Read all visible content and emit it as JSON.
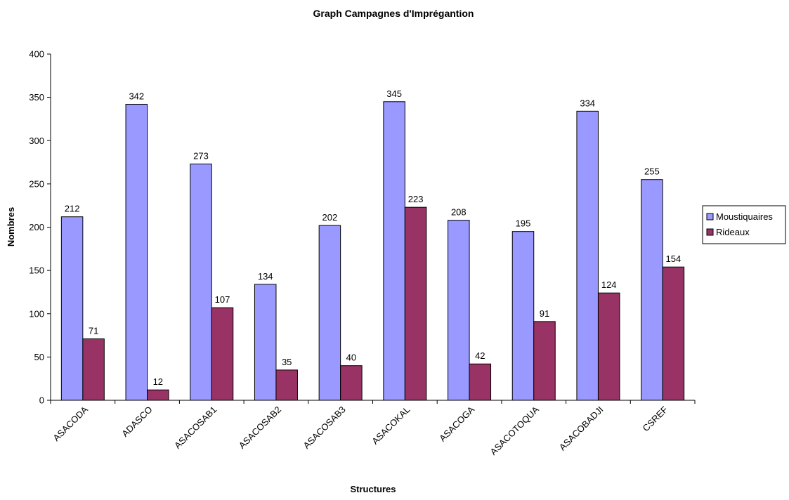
{
  "chart_data": {
    "type": "bar",
    "title": "Graph Campagnes d'Imprégantion",
    "xlabel": "Structures",
    "ylabel": "Nombres",
    "ylim": [
      0,
      400
    ],
    "yticks": [
      0,
      50,
      100,
      150,
      200,
      250,
      300,
      350,
      400
    ],
    "grid": false,
    "legend_position": "right",
    "categories": [
      "ASACODA",
      "ADASCO",
      "ASACOSAB1",
      "ASACOSAB2",
      "ASACOSAB3",
      "ASACOKAL",
      "ASACOGA",
      "ASACOTOQUA",
      "ASACOBADJI",
      "CSREF"
    ],
    "series": [
      {
        "name": "Moustiquaires",
        "color": "#9999FF",
        "values": [
          212,
          342,
          273,
          134,
          202,
          345,
          208,
          195,
          334,
          255
        ]
      },
      {
        "name": "Rideaux",
        "color": "#993366",
        "values": [
          71,
          12,
          107,
          35,
          40,
          223,
          42,
          91,
          124,
          154
        ]
      }
    ]
  }
}
